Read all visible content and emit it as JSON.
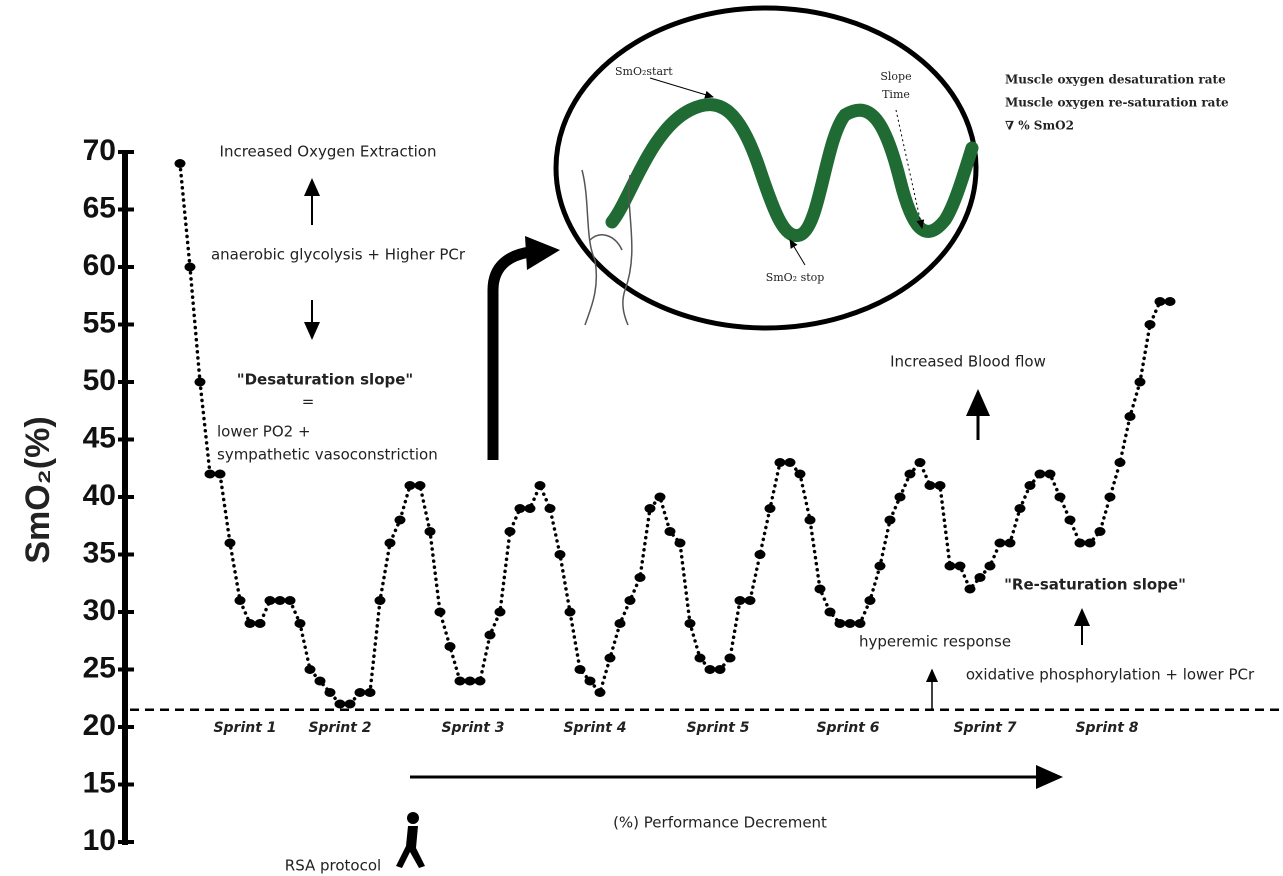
{
  "chart_data": {
    "type": "line",
    "y_label": "SmO₂(%)",
    "ylim": [
      10,
      70
    ],
    "yticks": [
      10,
      15,
      20,
      25,
      30,
      35,
      40,
      45,
      50,
      55,
      60,
      65,
      70
    ],
    "color": "#000000",
    "values": [
      69,
      60,
      50,
      42,
      42,
      36,
      31,
      29,
      29,
      31,
      31,
      31,
      29,
      25,
      24,
      23,
      22,
      22,
      23,
      23,
      31,
      36,
      38,
      41,
      41,
      37,
      30,
      27,
      24,
      24,
      24,
      28,
      30,
      37,
      39,
      39,
      41,
      39,
      35,
      30,
      25,
      24,
      23,
      26,
      29,
      31,
      33,
      39,
      40,
      37,
      36,
      29,
      26,
      25,
      25,
      26,
      31,
      31,
      35,
      39,
      43,
      43,
      42,
      38,
      32,
      30,
      29,
      29,
      29,
      31,
      34,
      38,
      40,
      42,
      43,
      41,
      41,
      34,
      34,
      32,
      33,
      34,
      36,
      36,
      39,
      41,
      42,
      42,
      40,
      38,
      36,
      36,
      37,
      40,
      43,
      47,
      50,
      55,
      57,
      57
    ],
    "threshold": 21.5,
    "sprints": [
      "Sprint 1",
      "Sprint 2",
      "Sprint 3",
      "Sprint 4",
      "Sprint 5",
      "Sprint 6",
      "Sprint 7",
      "Sprint 8"
    ],
    "annotations": [
      "Increased Oxygen Extraction",
      "anaerobic glycolysis + Higher PCr",
      "\"Desaturation slope\"",
      "=",
      "lower PO2 +",
      "sympathetic vasoconstriction",
      "Increased Blood flow",
      "\"Re-saturation slope\"",
      "hyperemic response",
      "oxidative phosphorylation + lower PCr",
      "(%) Performance Decrement",
      "RSA protocol"
    ],
    "inset_labels": [
      "SmO₂start",
      "Slope",
      "Time",
      "SmO₂ stop"
    ],
    "rate_labels": [
      "Muscle oxygen desaturation rate",
      "Muscle oxygen re-saturation rate",
      "∇ % SmO2"
    ]
  }
}
